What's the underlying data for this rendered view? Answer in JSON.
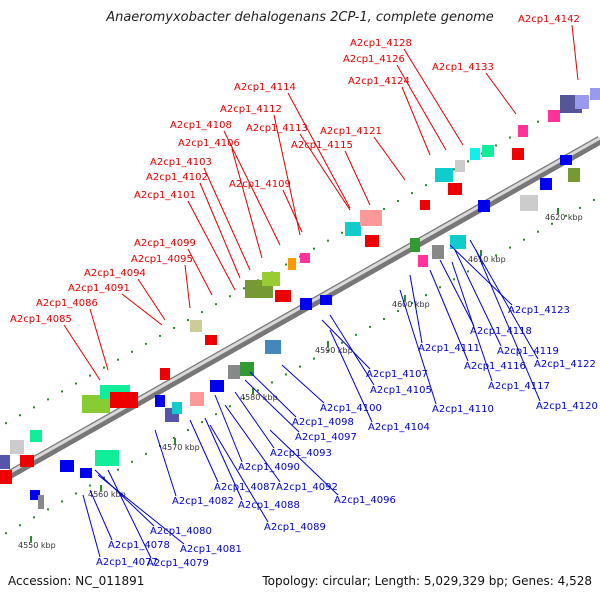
{
  "title": "Anaeromyxobacter dehalogenans 2CP-1, complete genome",
  "footer": {
    "accession": "Accession: NC_011891",
    "summary": "Topology: circular; Length: 5,029,329 bp; Genes: 4,528"
  },
  "colors": {
    "forward_label": "#dd0000",
    "reverse_label": "#0000cc",
    "backbone": "#888888"
  },
  "ticks": [
    "4550 kbp",
    "4560 kbp",
    "4570 kbp",
    "4580 kbp",
    "4590 kbp",
    "4600 kbp",
    "4610 kbp",
    "4620 kbp"
  ],
  "forward_labels": [
    "A2cp1_4142",
    "A2cp1_4128",
    "A2cp1_4126",
    "A2cp1_4133",
    "A2cp1_4124",
    "A2cp1_4114",
    "A2cp1_4112",
    "A2cp1_4108",
    "A2cp1_4113",
    "A2cp1_4121",
    "A2cp1_4106",
    "A2cp1_4115",
    "A2cp1_4103",
    "A2cp1_4102",
    "A2cp1_4109",
    "A2cp1_4101",
    "A2cp1_4099",
    "A2cp1_4095",
    "A2cp1_4094",
    "A2cp1_4091",
    "A2cp1_4086",
    "A2cp1_4085"
  ],
  "reverse_labels": [
    "A2cp1_4123",
    "A2cp1_4118",
    "A2cp1_4111",
    "A2cp1_4119",
    "A2cp1_4116",
    "A2cp1_4122",
    "A2cp1_4107",
    "A2cp1_4117",
    "A2cp1_4105",
    "A2cp1_4110",
    "A2cp1_4120",
    "A2cp1_4100",
    "A2cp1_4104",
    "A2cp1_4098",
    "A2cp1_4097",
    "A2cp1_4093",
    "A2cp1_4090",
    "A2cp1_4092",
    "A2cp1_4087",
    "A2cp1_4096",
    "A2cp1_4082",
    "A2cp1_4088",
    "A2cp1_4089",
    "A2cp1_4080",
    "A2cp1_4081",
    "A2cp1_4078",
    "A2cp1_4077",
    "A2cp1_4079"
  ]
}
